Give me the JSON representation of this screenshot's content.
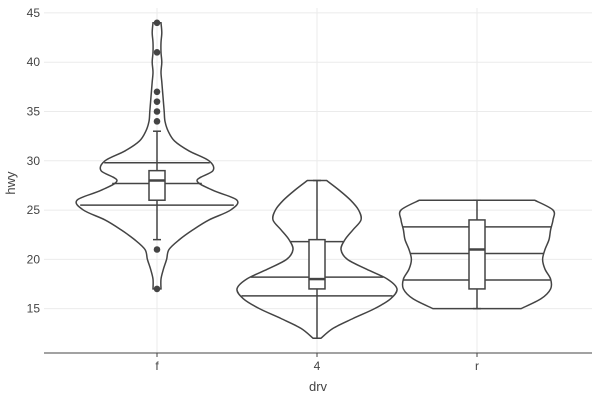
{
  "chart_data": {
    "type": "violin",
    "title": "",
    "xlabel": "drv",
    "ylabel": "hwy",
    "ylim": [
      10.5,
      45.5
    ],
    "yticks": [
      15,
      20,
      25,
      30,
      35,
      40,
      45
    ],
    "grid": true,
    "legend": "none",
    "categories": [
      "f",
      "4",
      "r"
    ],
    "groups": [
      {
        "category": "f",
        "y_range": [
          17,
          44
        ],
        "quartile_lines": [
          25.5,
          27.7,
          29.8
        ],
        "box": {
          "q1": 26,
          "median": 28,
          "q3": 29,
          "whisker_low": 22,
          "whisker_high": 33
        },
        "outliers": [
          17,
          21,
          34,
          35,
          36,
          37,
          41,
          44
        ],
        "density": [
          [
            17,
            0.05
          ],
          [
            18,
            0.05
          ],
          [
            19,
            0.08
          ],
          [
            20,
            0.12
          ],
          [
            21,
            0.15
          ],
          [
            22,
            0.28
          ],
          [
            23,
            0.45
          ],
          [
            24,
            0.65
          ],
          [
            25,
            0.92
          ],
          [
            26,
            1.0
          ],
          [
            27,
            0.7
          ],
          [
            28,
            0.5
          ],
          [
            29,
            0.7
          ],
          [
            30,
            0.65
          ],
          [
            31,
            0.4
          ],
          [
            32,
            0.22
          ],
          [
            33,
            0.14
          ],
          [
            34,
            0.1
          ],
          [
            35,
            0.09
          ],
          [
            36,
            0.08
          ],
          [
            37,
            0.07
          ],
          [
            38,
            0.06
          ],
          [
            39,
            0.05
          ],
          [
            40,
            0.06
          ],
          [
            41,
            0.05
          ],
          [
            42,
            0.05
          ],
          [
            43,
            0.06
          ],
          [
            44,
            0.05
          ]
        ]
      },
      {
        "category": "4",
        "y_range": [
          12,
          28
        ],
        "quartile_lines": [
          16.3,
          18.2,
          21.8
        ],
        "box": {
          "q1": 17,
          "median": 18,
          "q3": 22,
          "whisker_low": 12,
          "whisker_high": 28
        },
        "outliers": [],
        "density": [
          [
            12,
            0.05
          ],
          [
            13,
            0.2
          ],
          [
            14,
            0.45
          ],
          [
            15,
            0.72
          ],
          [
            16,
            0.92
          ],
          [
            17,
            1.0
          ],
          [
            18,
            0.88
          ],
          [
            19,
            0.62
          ],
          [
            20,
            0.38
          ],
          [
            21,
            0.3
          ],
          [
            22,
            0.35
          ],
          [
            23,
            0.45
          ],
          [
            24,
            0.55
          ],
          [
            25,
            0.52
          ],
          [
            26,
            0.42
          ],
          [
            27,
            0.28
          ],
          [
            28,
            0.12
          ]
        ]
      },
      {
        "category": "r",
        "y_range": [
          15,
          26
        ],
        "quartile_lines": [
          17.9,
          20.6,
          23.3
        ],
        "box": {
          "q1": 17,
          "median": 21,
          "q3": 24,
          "whisker_low": 15,
          "whisker_high": 26
        },
        "outliers": [],
        "density": [
          [
            15,
            0.55
          ],
          [
            16,
            0.8
          ],
          [
            17,
            0.92
          ],
          [
            18,
            0.92
          ],
          [
            19,
            0.85
          ],
          [
            20,
            0.82
          ],
          [
            21,
            0.85
          ],
          [
            22,
            0.9
          ],
          [
            23,
            0.92
          ],
          [
            24,
            0.95
          ],
          [
            25,
            0.95
          ],
          [
            26,
            0.72
          ]
        ]
      }
    ]
  }
}
